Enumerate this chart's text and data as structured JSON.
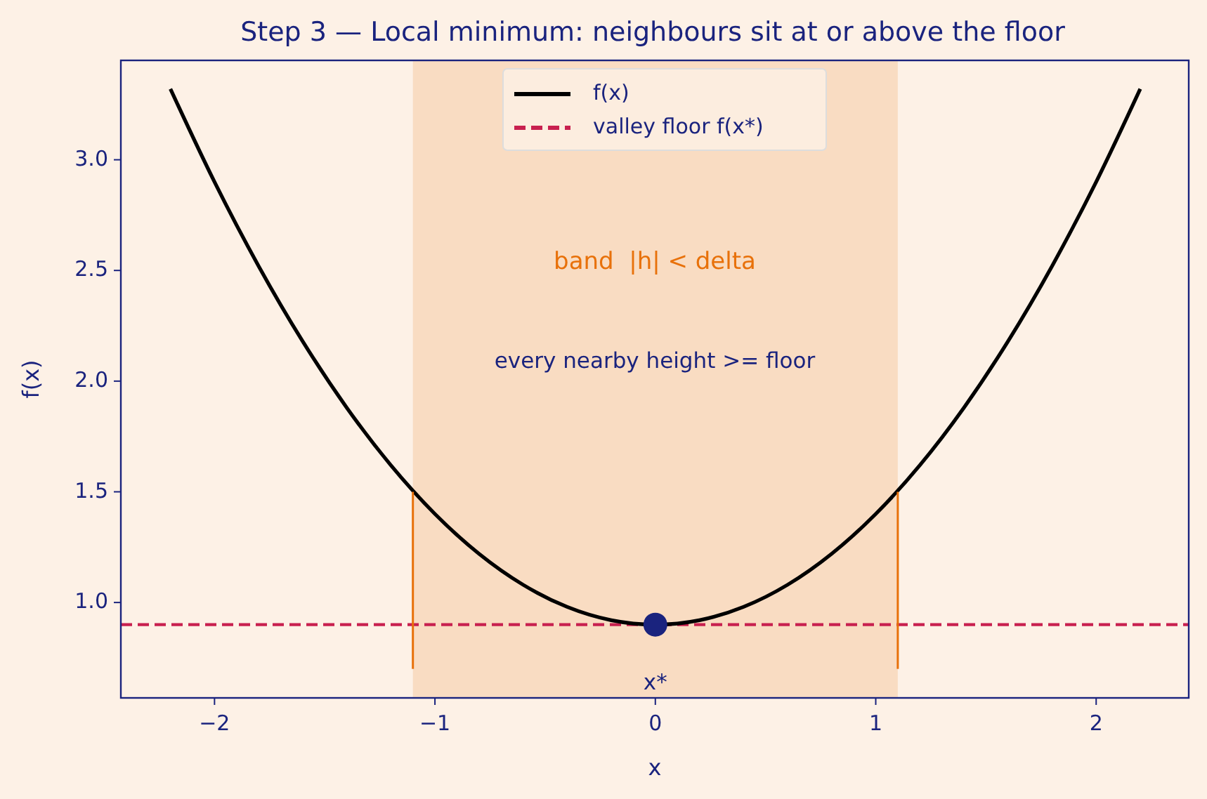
{
  "chart_data": {
    "type": "line",
    "title": "Step 3 — Local minimum: neighbours sit at or above the floor",
    "xlabel": "x",
    "ylabel": "f(x)",
    "xlim": [
      -2.425,
      2.42
    ],
    "ylim": [
      0.569,
      3.449
    ],
    "xticks": [
      {
        "value": -2,
        "label": "−2"
      },
      {
        "value": -1,
        "label": "−1"
      },
      0,
      1,
      2
    ],
    "yticks": [
      {
        "value": 1,
        "label": "1.0"
      },
      {
        "value": 1.5,
        "label": "1.5"
      },
      {
        "value": 2,
        "label": "2.0"
      },
      {
        "value": 2.5,
        "label": "2.5"
      },
      {
        "value": 3,
        "label": "3.0"
      }
    ],
    "grid": false,
    "legend": "top",
    "series": [
      {
        "name": "f(x)",
        "color": "#000000",
        "x": [
          -2.2,
          -2.0,
          -1.8,
          -1.6,
          -1.4,
          -1.2,
          -1.0,
          -0.8,
          -0.6,
          -0.4,
          -0.2,
          0,
          0.2,
          0.4,
          0.6,
          0.8,
          1.0,
          1.2,
          1.4,
          1.6,
          1.8,
          2.0,
          2.2
        ],
        "values": [
          3.32,
          2.9,
          2.52,
          2.18,
          1.88,
          1.62,
          1.4,
          1.22,
          1.08,
          0.98,
          0.92,
          0.9,
          0.92,
          0.98,
          1.08,
          1.22,
          1.4,
          1.62,
          1.88,
          2.18,
          2.52,
          2.9,
          3.32
        ]
      },
      {
        "type": "line",
        "color": "#e8710a",
        "x": [
          -1.1,
          -1.1
        ],
        "values": [
          0.7,
          1.5
        ]
      },
      {
        "type": "line",
        "color": "#e8710a",
        "x": [
          1.1,
          1.1
        ],
        "values": [
          0.7,
          1.5
        ]
      },
      {
        "type": "scatter",
        "color": "#1a237e",
        "marker": "circle",
        "x": [
          0
        ],
        "values": [
          0.9
        ]
      }
    ],
    "ref_lines": [
      {
        "axis": "y",
        "value": 0.9,
        "label": "valley floor f(x*)",
        "color": "#c8204f",
        "line_style": "dashed"
      }
    ],
    "bands": [
      {
        "axis": "x",
        "from": -1.1,
        "to": 1.1,
        "color": "#f9dcc2"
      }
    ],
    "annotations": [
      "band  |h| < delta",
      "every nearby height >= floor",
      {
        "text": "x*",
        "x": 0,
        "y": 0.9
      }
    ]
  }
}
